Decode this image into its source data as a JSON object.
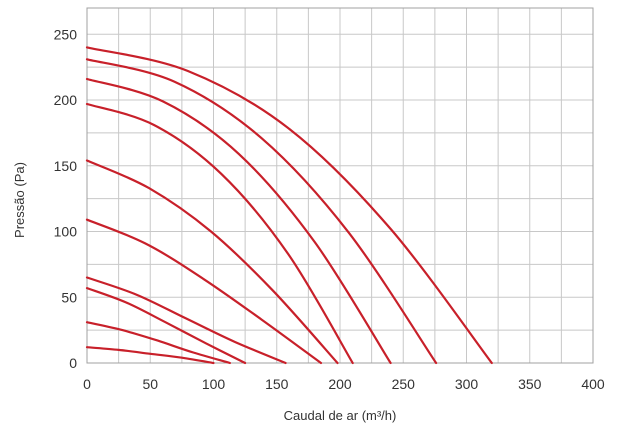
{
  "chart_data": {
    "type": "line",
    "title": "",
    "xlabel": "Caudal de ar (m³/h)",
    "ylabel": "Pressão (Pa)",
    "xlim": [
      0,
      400
    ],
    "ylim": [
      0,
      270
    ],
    "x_ticks": [
      0,
      50,
      100,
      150,
      200,
      250,
      300,
      350,
      400
    ],
    "y_ticks": [
      0,
      50,
      100,
      150,
      200,
      250
    ],
    "x_tick_labels": [
      "0",
      "50",
      "100",
      "150",
      "200",
      "250",
      "300",
      "350",
      "400"
    ],
    "y_tick_labels": [
      "0",
      "50",
      "100",
      "150",
      "200",
      "250"
    ],
    "grid": true,
    "series_color": "#c8202a",
    "series": [
      {
        "points": [
          [
            0,
            240
          ],
          [
            80,
            222
          ],
          [
            160,
            178
          ],
          [
            240,
            102
          ],
          [
            320,
            0
          ]
        ]
      },
      {
        "points": [
          [
            0,
            231
          ],
          [
            69,
            214
          ],
          [
            138,
            171
          ],
          [
            207,
            99
          ],
          [
            276,
            0
          ]
        ]
      },
      {
        "points": [
          [
            0,
            216
          ],
          [
            60,
            199
          ],
          [
            120,
            159
          ],
          [
            180,
            92
          ],
          [
            240,
            0
          ]
        ]
      },
      {
        "points": [
          [
            0,
            197
          ],
          [
            53,
            181
          ],
          [
            106,
            144
          ],
          [
            159,
            83
          ],
          [
            210,
            0
          ]
        ]
      },
      {
        "points": [
          [
            0,
            154
          ],
          [
            49,
            133
          ],
          [
            98,
            100
          ],
          [
            147,
            55
          ],
          [
            198,
            0
          ]
        ]
      },
      {
        "points": [
          [
            0,
            109
          ],
          [
            46,
            91
          ],
          [
            92,
            64
          ],
          [
            138,
            33
          ],
          [
            185,
            0
          ]
        ]
      },
      {
        "points": [
          [
            0,
            65
          ],
          [
            39,
            52
          ],
          [
            78,
            34
          ],
          [
            117,
            16
          ],
          [
            157,
            0
          ]
        ]
      },
      {
        "points": [
          [
            0,
            57
          ],
          [
            31,
            46
          ],
          [
            62,
            31
          ],
          [
            94,
            15
          ],
          [
            125,
            0
          ]
        ]
      },
      {
        "points": [
          [
            0,
            31
          ],
          [
            28,
            25
          ],
          [
            56,
            17
          ],
          [
            84,
            8
          ],
          [
            113,
            0
          ]
        ]
      },
      {
        "points": [
          [
            0,
            12
          ],
          [
            25,
            10
          ],
          [
            50,
            7
          ],
          [
            75,
            4
          ],
          [
            100,
            0
          ]
        ]
      }
    ]
  }
}
